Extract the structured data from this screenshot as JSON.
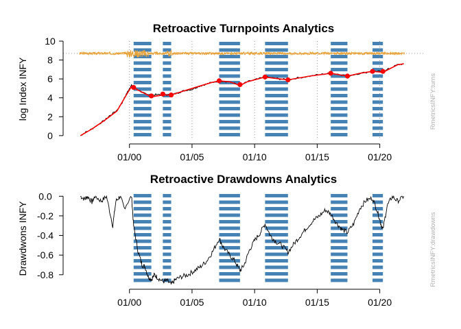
{
  "chart_data": [
    {
      "type": "line",
      "title": "Retroactive Turnpoints Analytics",
      "xlabel": "",
      "ylabel": "log Index INFY",
      "side_label": "RmetricsINFY:turns",
      "x_range": [
        "1996-02",
        "2022-01"
      ],
      "ylim": [
        -0.3,
        10
      ],
      "yticks": [
        0,
        2,
        4,
        6,
        8,
        10
      ],
      "xticks": [
        {
          "date": "2000-01",
          "label": "01/00"
        },
        {
          "date": "2005-01",
          "label": "01/05"
        },
        {
          "date": "2010-01",
          "label": "01/10"
        },
        {
          "date": "2015-01",
          "label": "01/15"
        },
        {
          "date": "2020-01",
          "label": "01/20"
        }
      ],
      "grid": "vertical dotted lines at year ticks",
      "reference_line": 8.7,
      "shaded_periods": [
        {
          "start": "2000-05",
          "end": "2001-10"
        },
        {
          "start": "2002-09",
          "end": "2003-05"
        },
        {
          "start": "2007-03",
          "end": "2008-11"
        },
        {
          "start": "2010-11",
          "end": "2012-09"
        },
        {
          "start": "2016-02",
          "end": "2017-06"
        },
        {
          "start": "2019-06",
          "end": "2020-04"
        }
      ],
      "series": [
        {
          "color": "#000000",
          "points": [
            [
              "1996-02",
              0.0
            ],
            [
              "1996-06",
              0.3
            ],
            [
              "1997-01",
              0.7
            ],
            [
              "1997-06",
              1.1
            ],
            [
              "1998-01",
              1.6
            ],
            [
              "1998-06",
              2.1
            ],
            [
              "1999-01",
              2.7
            ],
            [
              "1999-06",
              3.5
            ],
            [
              "1999-10",
              4.4
            ],
            [
              "2000-01",
              5.0
            ],
            [
              "2000-03",
              5.3
            ],
            [
              "2000-07",
              5.0
            ],
            [
              "2001-01",
              4.6
            ],
            [
              "2001-06",
              4.3
            ],
            [
              "2001-10",
              4.1
            ],
            [
              "2002-03",
              4.4
            ],
            [
              "2002-09",
              4.3
            ],
            [
              "2003-03",
              4.3
            ],
            [
              "2003-08",
              4.4
            ],
            [
              "2004-01",
              4.6
            ],
            [
              "2004-07",
              4.8
            ],
            [
              "2005-01",
              4.9
            ],
            [
              "2005-07",
              5.2
            ],
            [
              "2006-01",
              5.4
            ],
            [
              "2006-07",
              5.6
            ],
            [
              "2007-03",
              5.8
            ],
            [
              "2008-01",
              5.7
            ],
            [
              "2008-11",
              5.3
            ],
            [
              "2009-06",
              5.7
            ],
            [
              "2010-01",
              5.9
            ],
            [
              "2010-11",
              6.2
            ],
            [
              "2011-06",
              6.1
            ],
            [
              "2012-01",
              6.0
            ],
            [
              "2012-09",
              5.9
            ],
            [
              "2013-06",
              6.1
            ],
            [
              "2014-06",
              6.3
            ],
            [
              "2015-06",
              6.5
            ],
            [
              "2016-02",
              6.6
            ],
            [
              "2016-10",
              6.5
            ],
            [
              "2017-06",
              6.3
            ],
            [
              "2018-06",
              6.6
            ],
            [
              "2019-06",
              6.8
            ],
            [
              "2019-12",
              6.8
            ],
            [
              "2020-04",
              6.7
            ],
            [
              "2020-10",
              7.1
            ],
            [
              "2021-06",
              7.5
            ],
            [
              "2021-12",
              7.6
            ]
          ]
        },
        {
          "color": "#ff0000",
          "points": [
            [
              "1996-02",
              0.0
            ],
            [
              "1997-01",
              0.7
            ],
            [
              "1998-01",
              1.6
            ],
            [
              "1999-01",
              2.6
            ],
            [
              "1999-10",
              4.3
            ],
            [
              "2000-03",
              5.2
            ],
            [
              "2001-01",
              4.6
            ],
            [
              "2001-10",
              4.1
            ],
            [
              "2002-09",
              4.3
            ],
            [
              "2003-05",
              4.3
            ],
            [
              "2004-07",
              4.8
            ],
            [
              "2005-07",
              5.2
            ],
            [
              "2006-07",
              5.6
            ],
            [
              "2007-03",
              5.8
            ],
            [
              "2008-01",
              5.7
            ],
            [
              "2008-11",
              5.3
            ],
            [
              "2009-06",
              5.7
            ],
            [
              "2010-11",
              6.2
            ],
            [
              "2011-06",
              6.1
            ],
            [
              "2012-09",
              5.9
            ],
            [
              "2014-06",
              6.3
            ],
            [
              "2016-02",
              6.6
            ],
            [
              "2017-06",
              6.3
            ],
            [
              "2018-06",
              6.6
            ],
            [
              "2019-06",
              6.8
            ],
            [
              "2020-04",
              6.7
            ],
            [
              "2021-06",
              7.5
            ],
            [
              "2021-12",
              7.6
            ]
          ]
        }
      ],
      "turnpoints": [
        {
          "date": "2000-05",
          "value": 5.1
        },
        {
          "date": "2001-10",
          "value": 4.2
        },
        {
          "date": "2002-09",
          "value": 4.4
        },
        {
          "date": "2003-05",
          "value": 4.3
        },
        {
          "date": "2007-03",
          "value": 5.8
        },
        {
          "date": "2008-11",
          "value": 5.4
        },
        {
          "date": "2010-11",
          "value": 6.2
        },
        {
          "date": "2012-09",
          "value": 5.9
        },
        {
          "date": "2016-02",
          "value": 6.6
        },
        {
          "date": "2017-06",
          "value": 6.3
        },
        {
          "date": "2019-06",
          "value": 6.8
        },
        {
          "date": "2020-04",
          "value": 6.8
        }
      ],
      "colors": {
        "line": "#000000",
        "smooth": "#ff0000",
        "turnpoint": "#ff0000",
        "noise": "#e8a33a",
        "band": "#4682b4",
        "grid": "#999999"
      }
    },
    {
      "type": "line",
      "title": "Retroactive Drawdowns Analytics",
      "xlabel": "",
      "ylabel": "Drawdwons INFY",
      "side_label": "RmetricsINFY:drawdowns",
      "x_range": [
        "1996-02",
        "2022-01"
      ],
      "ylim": [
        -0.92,
        0.03
      ],
      "yticks": [
        0.0,
        -0.2,
        -0.4,
        -0.6,
        -0.8
      ],
      "ytick_labels": [
        "0.0",
        "-0.2",
        "-0.4",
        "-0.6",
        "-0.8"
      ],
      "xticks": [
        {
          "date": "2000-01",
          "label": "01/00"
        },
        {
          "date": "2005-01",
          "label": "01/05"
        },
        {
          "date": "2010-01",
          "label": "01/10"
        },
        {
          "date": "2015-01",
          "label": "01/15"
        },
        {
          "date": "2020-01",
          "label": "01/20"
        }
      ],
      "shaded_periods": [
        {
          "start": "2000-05",
          "end": "2001-10"
        },
        {
          "start": "2002-09",
          "end": "2003-05"
        },
        {
          "start": "2007-03",
          "end": "2008-11"
        },
        {
          "start": "2010-11",
          "end": "2012-09"
        },
        {
          "start": "2016-02",
          "end": "2017-06"
        },
        {
          "start": "2019-06",
          "end": "2020-04"
        }
      ],
      "series": [
        {
          "color": "#000000",
          "points": [
            [
              "1996-02",
              0.0
            ],
            [
              "1996-06",
              -0.03
            ],
            [
              "1996-09",
              0.0
            ],
            [
              "1997-01",
              -0.06
            ],
            [
              "1997-04",
              0.0
            ],
            [
              "1997-10",
              -0.05
            ],
            [
              "1998-03",
              0.0
            ],
            [
              "1998-09",
              -0.3
            ],
            [
              "1998-12",
              -0.05
            ],
            [
              "1999-04",
              0.0
            ],
            [
              "1999-08",
              -0.12
            ],
            [
              "2000-03",
              0.0
            ],
            [
              "2000-05",
              -0.3
            ],
            [
              "2000-09",
              -0.55
            ],
            [
              "2001-01",
              -0.7
            ],
            [
              "2001-04",
              -0.72
            ],
            [
              "2001-07",
              -0.82
            ],
            [
              "2001-10",
              -0.85
            ],
            [
              "2002-01",
              -0.8
            ],
            [
              "2002-04",
              -0.83
            ],
            [
              "2002-09",
              -0.87
            ],
            [
              "2003-01",
              -0.86
            ],
            [
              "2003-05",
              -0.9
            ],
            [
              "2003-09",
              -0.85
            ],
            [
              "2004-03",
              -0.82
            ],
            [
              "2004-09",
              -0.8
            ],
            [
              "2005-03",
              -0.76
            ],
            [
              "2005-09",
              -0.72
            ],
            [
              "2006-03",
              -0.66
            ],
            [
              "2006-09",
              -0.56
            ],
            [
              "2007-03",
              -0.43
            ],
            [
              "2007-07",
              -0.52
            ],
            [
              "2008-01",
              -0.6
            ],
            [
              "2008-06",
              -0.66
            ],
            [
              "2008-11",
              -0.76
            ],
            [
              "2009-03",
              -0.7
            ],
            [
              "2009-08",
              -0.55
            ],
            [
              "2010-01",
              -0.45
            ],
            [
              "2010-06",
              -0.38
            ],
            [
              "2010-11",
              -0.28
            ],
            [
              "2011-04",
              -0.4
            ],
            [
              "2011-09",
              -0.46
            ],
            [
              "2012-03",
              -0.5
            ],
            [
              "2012-09",
              -0.57
            ],
            [
              "2013-03",
              -0.48
            ],
            [
              "2013-09",
              -0.4
            ],
            [
              "2014-03",
              -0.32
            ],
            [
              "2014-09",
              -0.25
            ],
            [
              "2015-03",
              -0.2
            ],
            [
              "2015-09",
              -0.14
            ],
            [
              "2016-02",
              -0.18
            ],
            [
              "2016-08",
              -0.28
            ],
            [
              "2017-01",
              -0.34
            ],
            [
              "2017-06",
              -0.37
            ],
            [
              "2017-12",
              -0.28
            ],
            [
              "2018-06",
              -0.12
            ],
            [
              "2018-12",
              -0.04
            ],
            [
              "2019-06",
              -0.02
            ],
            [
              "2019-11",
              -0.16
            ],
            [
              "2020-02",
              -0.28
            ],
            [
              "2020-04",
              -0.34
            ],
            [
              "2020-08",
              -0.1
            ],
            [
              "2021-01",
              0.0
            ],
            [
              "2021-06",
              -0.05
            ],
            [
              "2021-12",
              0.0
            ]
          ]
        }
      ],
      "colors": {
        "line": "#000000",
        "band": "#4682b4"
      }
    }
  ]
}
